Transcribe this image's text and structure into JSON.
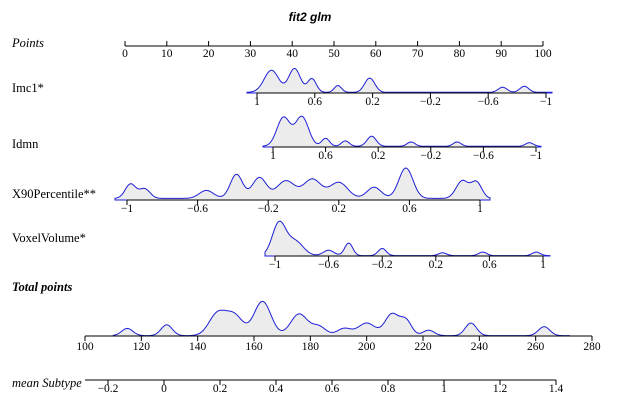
{
  "chart_data": {
    "type": "nomogram",
    "title": "fit2 glm",
    "density_color": "#1f1fd6",
    "density_fill": "#ececec",
    "rows": [
      {
        "label": "Points",
        "style": "italic",
        "range": [
          0,
          100
        ],
        "ticks": [
          "0",
          "10",
          "20",
          "30",
          "40",
          "50",
          "60",
          "70",
          "80",
          "90",
          "100"
        ],
        "tick_values": [
          0,
          10,
          20,
          30,
          40,
          50,
          60,
          70,
          80,
          90,
          100
        ]
      },
      {
        "label": "Imc1*",
        "style": "normal",
        "range": [
          1.0,
          -1.0
        ],
        "ticks": [
          "1",
          "0.6",
          "0.2",
          "−0.2",
          "−0.6",
          "−1"
        ],
        "tick_values": [
          1.0,
          0.6,
          0.2,
          -0.2,
          -0.6,
          -1.0
        ],
        "density": {
          "peaks": [
            [
              0.9,
              0.65,
              0.05
            ],
            [
              0.74,
              0.7,
              0.04
            ],
            [
              0.62,
              0.4,
              0.03
            ],
            [
              0.44,
              0.2,
              0.025
            ],
            [
              0.22,
              0.42,
              0.035
            ],
            [
              -0.7,
              0.15,
              0.03
            ],
            [
              -0.85,
              0.18,
              0.03
            ]
          ],
          "base": 0.02
        }
      },
      {
        "label": "Idmn",
        "style": "normal",
        "range": [
          1.0,
          -1.0
        ],
        "ticks": [
          "1",
          "0.6",
          "0.2",
          "−0.2",
          "−0.6",
          "−1"
        ],
        "tick_values": [
          1.0,
          0.6,
          0.2,
          -0.2,
          -0.6,
          -1.0
        ],
        "density": {
          "peaks": [
            [
              0.92,
              0.8,
              0.05
            ],
            [
              0.78,
              0.82,
              0.05
            ],
            [
              0.6,
              0.22,
              0.03
            ],
            [
              0.45,
              0.15,
              0.03
            ],
            [
              0.25,
              0.28,
              0.035
            ],
            [
              -0.05,
              0.12,
              0.03
            ],
            [
              -0.4,
              0.12,
              0.03
            ],
            [
              -0.95,
              0.1,
              0.03
            ]
          ],
          "base": 0.02
        }
      },
      {
        "label": "X90Percentile**",
        "style": "normal",
        "range": [
          -1.0,
          1.0
        ],
        "ticks": [
          "−1",
          "−0.6",
          "−0.2",
          "0.2",
          "0.6",
          "1"
        ],
        "tick_values": [
          -1.0,
          -0.6,
          -0.2,
          0.2,
          0.6,
          1.0
        ],
        "density": {
          "peaks": [
            [
              -0.98,
              0.45,
              0.03
            ],
            [
              -0.9,
              0.3,
              0.03
            ],
            [
              -0.55,
              0.25,
              0.04
            ],
            [
              -0.38,
              0.75,
              0.035
            ],
            [
              -0.25,
              0.65,
              0.04
            ],
            [
              -0.1,
              0.55,
              0.05
            ],
            [
              0.05,
              0.6,
              0.05
            ],
            [
              0.2,
              0.5,
              0.05
            ],
            [
              0.4,
              0.35,
              0.04
            ],
            [
              0.58,
              0.95,
              0.04
            ],
            [
              0.9,
              0.55,
              0.035
            ],
            [
              0.98,
              0.5,
              0.03
            ]
          ],
          "base": 0.05
        }
      },
      {
        "label": "VoxelVolume*",
        "style": "normal",
        "range": [
          -1.0,
          1.0
        ],
        "ticks": [
          "−1",
          "−0.6",
          "−0.2",
          "0.2",
          "0.6",
          "1"
        ],
        "tick_values": [
          -1.0,
          -0.6,
          -0.2,
          0.2,
          0.6,
          1.0
        ],
        "density": {
          "peaks": [
            [
              -0.97,
              0.9,
              0.05
            ],
            [
              -0.85,
              0.4,
              0.06
            ],
            [
              -0.6,
              0.15,
              0.04
            ],
            [
              -0.45,
              0.35,
              0.03
            ],
            [
              -0.2,
              0.2,
              0.03
            ],
            [
              0.25,
              0.08,
              0.03
            ],
            [
              0.55,
              0.1,
              0.03
            ],
            [
              0.95,
              0.1,
              0.03
            ]
          ],
          "base": 0.01
        }
      },
      {
        "label": "Total points",
        "style": "bold-italic",
        "range": [
          100,
          280
        ],
        "ticks": [
          "100",
          "120",
          "140",
          "160",
          "180",
          "200",
          "220",
          "240",
          "260",
          "280"
        ],
        "tick_values": [
          100,
          120,
          140,
          160,
          180,
          200,
          220,
          240,
          260,
          280
        ],
        "density": {
          "peaks": [
            [
              115,
              0.2,
              2
            ],
            [
              129,
              0.3,
              2
            ],
            [
              147,
              0.6,
              3
            ],
            [
              153,
              0.55,
              3
            ],
            [
              163,
              0.95,
              3
            ],
            [
              176,
              0.6,
              3
            ],
            [
              183,
              0.25,
              2.5
            ],
            [
              192,
              0.2,
              2.5
            ],
            [
              200,
              0.35,
              3
            ],
            [
              209,
              0.6,
              2.5
            ],
            [
              214,
              0.4,
              2
            ],
            [
              222,
              0.15,
              2
            ],
            [
              237,
              0.35,
              2
            ],
            [
              263,
              0.25,
              2
            ]
          ],
          "base": 0.01
        }
      },
      {
        "label": "mean Subtype",
        "style": "italic",
        "range": [
          -0.2,
          1.4
        ],
        "ticks": [
          "−0.2",
          "0",
          "0.2",
          "0.4",
          "0.6",
          "0.8",
          "1",
          "1.2",
          "1.4"
        ],
        "tick_values": [
          -0.2,
          0,
          0.2,
          0.4,
          0.6,
          0.8,
          1.0,
          1.2,
          1.4
        ]
      }
    ]
  }
}
